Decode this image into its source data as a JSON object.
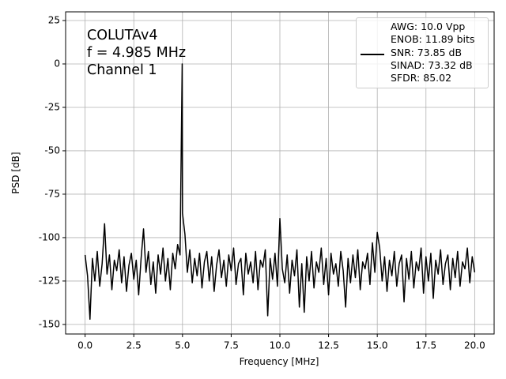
{
  "chart_data": {
    "type": "line",
    "xlabel": "Frequency [MHz]",
    "ylabel": "PSD [dB]",
    "annotations": [
      "COLUTAv4",
      "f = 4.985 MHz",
      "Channel 1"
    ],
    "xlim": [
      -1,
      21
    ],
    "ylim": [
      -155.5,
      30
    ],
    "xticks": [
      {
        "value": 0,
        "label": "0.0"
      },
      2.5,
      {
        "value": 5,
        "label": "5.0"
      },
      7.5,
      {
        "value": 10,
        "label": "10.0"
      },
      12.5,
      {
        "value": 15,
        "label": "15.0"
      },
      17.5,
      {
        "value": 20,
        "label": "20.0"
      }
    ],
    "yticks": [
      25,
      0,
      -25,
      -50,
      -75,
      -100,
      -125,
      -150
    ],
    "grid": true,
    "x": [
      0,
      0.125,
      0.25,
      0.375,
      0.5,
      0.625,
      0.75,
      0.875,
      1,
      1.125,
      1.25,
      1.375,
      1.5,
      1.625,
      1.75,
      1.875,
      2,
      2.125,
      2.25,
      2.375,
      2.5,
      2.625,
      2.75,
      2.875,
      3,
      3.125,
      3.25,
      3.375,
      3.5,
      3.625,
      3.75,
      3.875,
      4,
      4.125,
      4.25,
      4.375,
      4.5,
      4.625,
      4.75,
      4.875,
      4.985,
      5,
      5.125,
      5.25,
      5.375,
      5.5,
      5.625,
      5.75,
      5.875,
      6,
      6.125,
      6.25,
      6.375,
      6.5,
      6.625,
      6.75,
      6.875,
      7,
      7.125,
      7.25,
      7.375,
      7.5,
      7.625,
      7.75,
      7.875,
      8,
      8.125,
      8.25,
      8.375,
      8.5,
      8.625,
      8.75,
      8.875,
      9,
      9.125,
      9.25,
      9.375,
      9.5,
      9.625,
      9.75,
      9.875,
      10,
      10.125,
      10.25,
      10.375,
      10.5,
      10.625,
      10.75,
      10.875,
      11,
      11.125,
      11.25,
      11.375,
      11.5,
      11.625,
      11.75,
      11.875,
      12,
      12.125,
      12.25,
      12.375,
      12.5,
      12.625,
      12.75,
      12.875,
      13,
      13.125,
      13.25,
      13.375,
      13.5,
      13.625,
      13.75,
      13.875,
      14,
      14.125,
      14.25,
      14.375,
      14.5,
      14.625,
      14.75,
      14.875,
      15,
      15.125,
      15.25,
      15.375,
      15.5,
      15.625,
      15.75,
      15.875,
      16,
      16.125,
      16.25,
      16.375,
      16.5,
      16.625,
      16.75,
      16.875,
      17,
      17.125,
      17.25,
      17.375,
      17.5,
      17.625,
      17.75,
      17.875,
      18,
      18.125,
      18.25,
      18.375,
      18.5,
      18.625,
      18.75,
      18.875,
      19,
      19.125,
      19.25,
      19.375,
      19.5,
      19.625,
      19.75,
      19.875,
      20
    ],
    "series": [
      {
        "name": "AWG: 10.0 Vpp\nENOB: 11.89 bits\nSNR: 73.85 dB\nSINAD: 73.32 dB\nSFDR: 85.02",
        "color": "#000000",
        "values": [
          -110,
          -122,
          -147,
          -112,
          -125,
          -108,
          -128,
          -115,
          -92,
          -121,
          -110,
          -130,
          -113,
          -119,
          -107,
          -126,
          -111,
          -131,
          -116,
          -109,
          -124,
          -113,
          -133,
          -112,
          -95,
          -120,
          -108,
          -127,
          -114,
          -132,
          -110,
          -121,
          -106,
          -125,
          -112,
          -130,
          -109,
          -118,
          -104,
          -110,
          0,
          -86,
          -98,
          -120,
          -107,
          -126,
          -112,
          -122,
          -109,
          -129,
          -114,
          -108,
          -125,
          -111,
          -131,
          -116,
          -107,
          -123,
          -113,
          -128,
          -110,
          -119,
          -106,
          -127,
          -115,
          -112,
          -133,
          -109,
          -121,
          -114,
          -126,
          -108,
          -130,
          -113,
          -117,
          -107,
          -145,
          -112,
          -124,
          -109,
          -128,
          -89,
          -118,
          -126,
          -110,
          -132,
          -113,
          -122,
          -107,
          -140,
          -115,
          -143,
          -111,
          -125,
          -108,
          -129,
          -114,
          -120,
          -106,
          -127,
          -112,
          -133,
          -109,
          -121,
          -115,
          -128,
          -108,
          -119,
          -140,
          -112,
          -126,
          -110,
          -123,
          -107,
          -130,
          -114,
          -118,
          -109,
          -127,
          -103,
          -120,
          -97,
          -106,
          -125,
          -111,
          -131,
          -113,
          -122,
          -108,
          -128,
          -115,
          -110,
          -137,
          -112,
          -124,
          -108,
          -129,
          -114,
          -119,
          -106,
          -132,
          -111,
          -125,
          -109,
          -135,
          -113,
          -121,
          -107,
          -127,
          -115,
          -110,
          -130,
          -112,
          -123,
          -108,
          -128,
          -114,
          -118,
          -106,
          -126,
          -111,
          -120
        ]
      }
    ],
    "legend": "upper right"
  }
}
